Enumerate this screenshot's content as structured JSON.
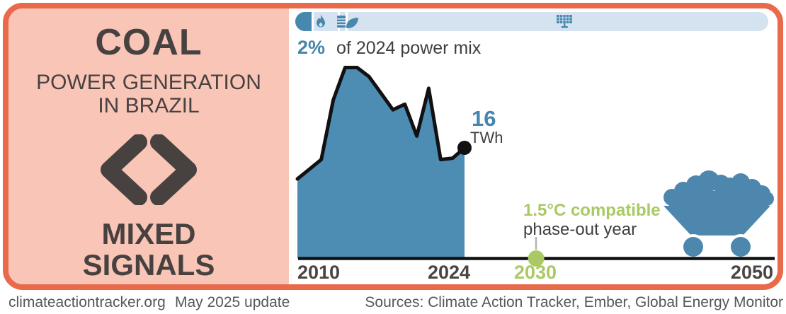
{
  "left_panel": {
    "title": "COAL",
    "subtitle_line1": "POWER GENERATION",
    "subtitle_line2": "IN BRAZIL",
    "rating_line1": "MIXED",
    "rating_line2": "SIGNALS",
    "rating_icon": "mixed-signals-chevrons"
  },
  "power_mix_bar": {
    "coal_share": "2%",
    "coal_share_pct": 2,
    "label": "of 2024 power mix",
    "segment_icons": [
      "gas-flame",
      "oil-barrel",
      "leaf",
      "solar-panel"
    ]
  },
  "chart_data": {
    "type": "area",
    "title": "Coal power generation in Brazil",
    "unit": "TWh",
    "x": [
      2010,
      2011,
      2012,
      2013,
      2014,
      2015,
      2016,
      2017,
      2018,
      2019,
      2020,
      2021,
      2022,
      2023,
      2024
    ],
    "values": [
      11.5,
      12.9,
      14.3,
      22.9,
      27.6,
      27.6,
      26.3,
      23.9,
      21.5,
      22.3,
      17.7,
      24.6,
      14.3,
      14.5,
      16
    ],
    "xlim": [
      2010,
      2050
    ],
    "ylim": [
      0,
      30
    ],
    "grid": false,
    "x_ticks": [
      "2010",
      "2024",
      "2030",
      "2050"
    ],
    "latest_point": {
      "year": 2024,
      "value": 16,
      "label": "16",
      "unit_label": "TWh"
    },
    "phase_out": {
      "year": 2030,
      "label_line1": "1.5°C compatible",
      "label_line2": "phase-out year",
      "tick_label": "2030"
    }
  },
  "footer": {
    "site": "climateactiontracker.org",
    "update": "May 2025 update",
    "sources": "Sources: Climate Action Tracker, Ember, Global Energy Monitor"
  },
  "colors": {
    "accent_orange": "#e9694b",
    "panel_salmon": "#f8c5b7",
    "chart_blue": "#4d8cb3",
    "icon_blue": "#4887ae",
    "bar_light_blue": "#d4e3ef",
    "green": "#a9c964",
    "dark_text": "#474140",
    "body_text": "#3f3f3f",
    "footer_text": "#54585a",
    "line_black": "#111111"
  }
}
